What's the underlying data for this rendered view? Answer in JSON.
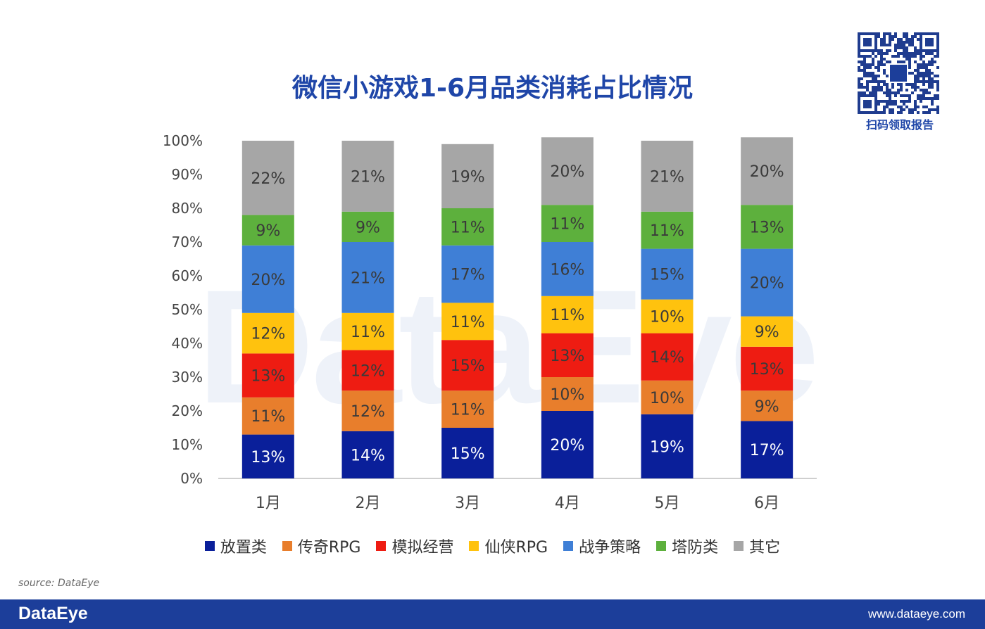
{
  "watermark": "DataEye",
  "qr": {
    "caption": "扫码领取报告"
  },
  "source": "source: DataEye",
  "footer": {
    "logo": "DataEye",
    "url": "www.dataeye.com"
  },
  "chart_data": {
    "type": "bar",
    "stacked": true,
    "title": "微信小游戏1-6月品类消耗占比情况",
    "categories": [
      "1月",
      "2月",
      "3月",
      "4月",
      "5月",
      "6月"
    ],
    "yticks": [
      "0%",
      "10%",
      "20%",
      "30%",
      "40%",
      "50%",
      "60%",
      "70%",
      "80%",
      "90%",
      "100%"
    ],
    "ylim": [
      0,
      100
    ],
    "legend_position": "bottom",
    "grid": false,
    "series": [
      {
        "name": "放置类",
        "color": "#0a1f9a",
        "label_color": "#ffffff",
        "values": [
          13,
          14,
          15,
          20,
          19,
          17
        ]
      },
      {
        "name": "传奇RPG",
        "color": "#e87e2c",
        "label_color": "#3a3a3a",
        "values": [
          11,
          12,
          11,
          10,
          10,
          9
        ]
      },
      {
        "name": "模拟经营",
        "color": "#ee1c12",
        "label_color": "#3a3a3a",
        "values": [
          13,
          12,
          15,
          13,
          14,
          13
        ]
      },
      {
        "name": "仙侠RPG",
        "color": "#ffc20e",
        "label_color": "#3a3a3a",
        "values": [
          12,
          11,
          11,
          11,
          10,
          9
        ]
      },
      {
        "name": "战争策略",
        "color": "#3f7fd6",
        "label_color": "#3a3a3a",
        "values": [
          20,
          21,
          17,
          16,
          15,
          20
        ]
      },
      {
        "name": "塔防类",
        "color": "#5db03d",
        "label_color": "#3a3a3a",
        "values": [
          9,
          9,
          11,
          11,
          11,
          13
        ]
      },
      {
        "name": "其它",
        "color": "#a6a6a6",
        "label_color": "#3a3a3a",
        "values": [
          22,
          21,
          19,
          20,
          21,
          20
        ]
      }
    ]
  }
}
